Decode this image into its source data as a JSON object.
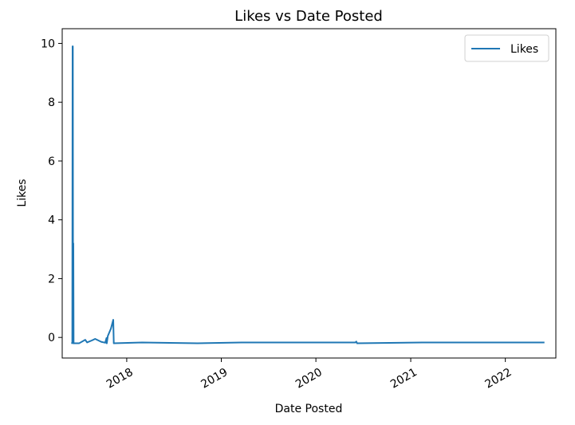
{
  "chart_data": {
    "type": "line",
    "title": "Likes vs Date Posted",
    "xlabel": "Date Posted",
    "ylabel": "Likes",
    "x_tick_labels": [
      "2018",
      "2019",
      "2020",
      "2021",
      "2022"
    ],
    "y_tick_labels": [
      "0",
      "2",
      "4",
      "6",
      "8",
      "10"
    ],
    "y_ticks": [
      0,
      2,
      4,
      6,
      8,
      10
    ],
    "ylim": [
      -0.7,
      10.5
    ],
    "xlim": [
      "2017-04-27",
      "2022-07-15"
    ],
    "grid": false,
    "legend_position": "top-right",
    "series": [
      {
        "name": "Likes",
        "color": "#1f77b4",
        "points": [
          {
            "x": "2017-06-01",
            "y": -0.2
          },
          {
            "x": "2017-06-05",
            "y": -0.19
          },
          {
            "x": "2017-06-06",
            "y": 9.9
          },
          {
            "x": "2017-06-07",
            "y": 9.9
          },
          {
            "x": "2017-06-08",
            "y": -0.2
          },
          {
            "x": "2017-06-09",
            "y": 3.2
          },
          {
            "x": "2017-06-10",
            "y": -0.2
          },
          {
            "x": "2017-07-01",
            "y": -0.2
          },
          {
            "x": "2017-07-25",
            "y": -0.08
          },
          {
            "x": "2017-08-01",
            "y": -0.17
          },
          {
            "x": "2017-08-20",
            "y": -0.1
          },
          {
            "x": "2017-09-01",
            "y": -0.05
          },
          {
            "x": "2017-09-25",
            "y": -0.15
          },
          {
            "x": "2017-10-10",
            "y": -0.18
          },
          {
            "x": "2017-10-15",
            "y": -0.02
          },
          {
            "x": "2017-10-16",
            "y": -0.2
          },
          {
            "x": "2017-10-20",
            "y": 0.05
          },
          {
            "x": "2017-11-01",
            "y": 0.3
          },
          {
            "x": "2017-11-10",
            "y": 0.6
          },
          {
            "x": "2017-11-12",
            "y": -0.2
          },
          {
            "x": "2018-03-01",
            "y": -0.17
          },
          {
            "x": "2018-10-01",
            "y": -0.2
          },
          {
            "x": "2019-03-20",
            "y": -0.17
          },
          {
            "x": "2020-06-01",
            "y": -0.17
          },
          {
            "x": "2020-06-05",
            "y": -0.14
          },
          {
            "x": "2020-06-08",
            "y": -0.2
          },
          {
            "x": "2021-02-15",
            "y": -0.17
          },
          {
            "x": "2022-06-01",
            "y": -0.17
          }
        ]
      }
    ]
  }
}
